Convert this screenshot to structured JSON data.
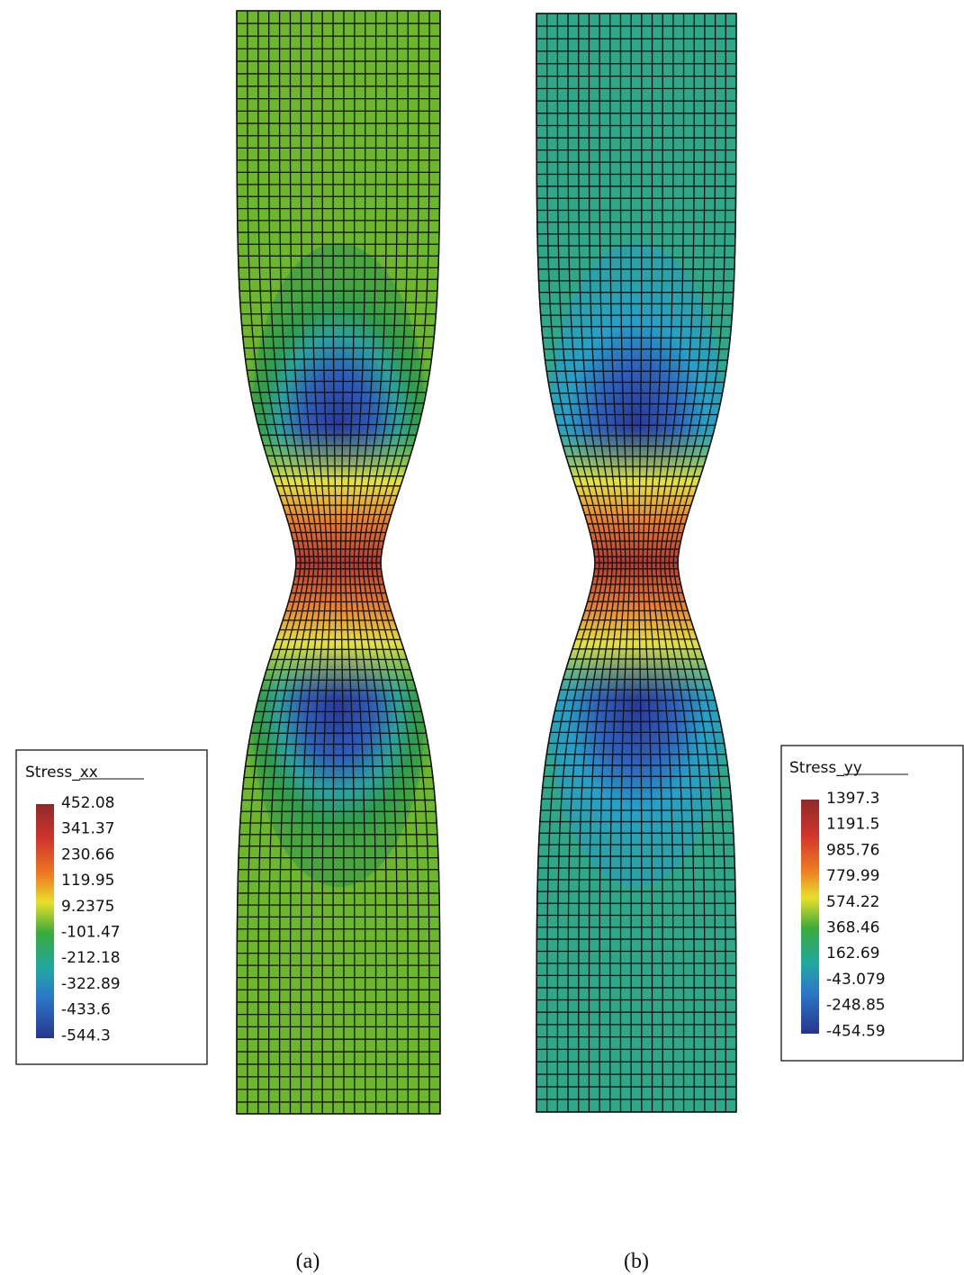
{
  "panels": [
    {
      "caption": "(a)",
      "legend": {
        "title": "Stress_xx",
        "labels": [
          "452.08",
          "341.37",
          "230.66",
          "119.95",
          "9.2375",
          "-101.47",
          "-212.18",
          "-322.89",
          "-433.6",
          "-544.3"
        ]
      }
    },
    {
      "caption": "(b)",
      "legend": {
        "title": "Stress_yy",
        "labels": [
          "1397.3",
          "1191.5",
          "985.76",
          "779.99",
          "574.22",
          "368.46",
          "162.69",
          "-43.079",
          "-248.85",
          "-454.59"
        ]
      }
    }
  ]
}
